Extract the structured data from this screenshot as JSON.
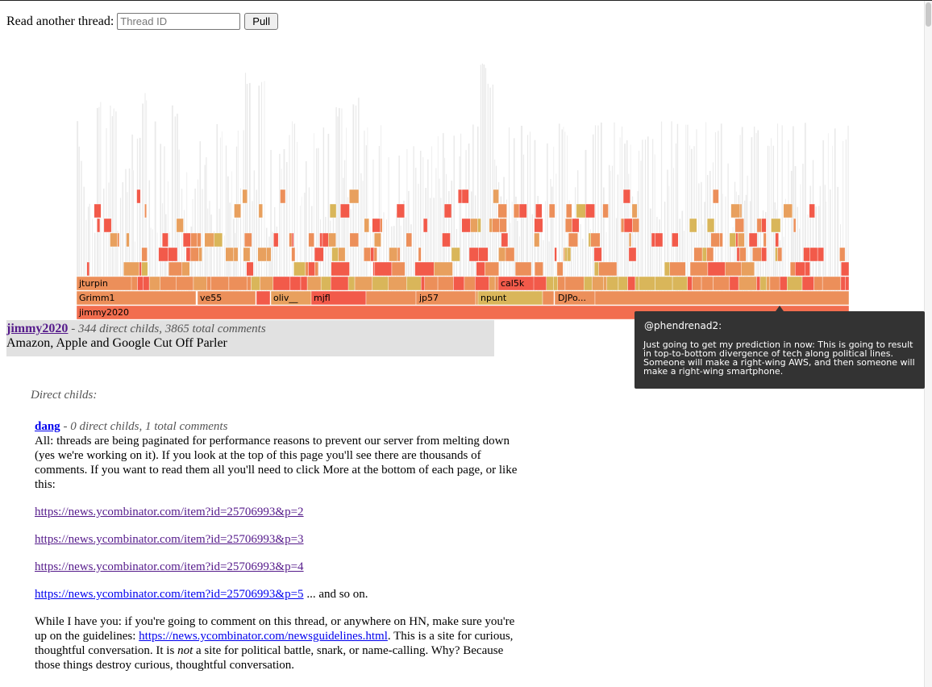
{
  "form": {
    "label": "Read another thread:",
    "placeholder": "Thread ID",
    "pull_label": "Pull"
  },
  "flamegraph": {
    "root_label": "jimmy2020",
    "level1_labels": [
      "Grimm1",
      "ve55",
      "oliv__",
      "mjfl",
      "jp57",
      "npunt",
      "DJPo..."
    ],
    "level2_labels": [
      "jturpin",
      "cal5k"
    ],
    "colors": {
      "root": "#f26d4f",
      "orange": "#ec8f5a",
      "red": "#f25a4a",
      "tan": "#e8a05e",
      "yellow": "#d9b65a",
      "light": "#e9e9e9"
    }
  },
  "tooltip": {
    "user": "@phendrenad2:",
    "text": "Just going to get my prediction in now: This is going to result in top-to-bottom divergence of tech along political lines. Someone will make a right-wing AWS, and then someone will make a right-wing smartphone."
  },
  "thread": {
    "author": "jimmy2020",
    "stats": "344 direct childs, 3865 total comments",
    "title": "Amazon, Apple and Google Cut Off Parler"
  },
  "direct_label": "Direct childs:",
  "comment": {
    "author": "dang",
    "stats": "0 direct childs, 1 total comments",
    "p1": "All: threads are being paginated for performance reasons to prevent our server from melting down (yes we're working on it). If you look at the top of this page you'll see there are thousands of comments. If you want to read them all you'll need to click More at the bottom of each page, or like this:",
    "links": [
      "https://news.ycombinator.com/item?id=25706993&p=2",
      "https://news.ycombinator.com/item?id=25706993&p=3",
      "https://news.ycombinator.com/item?id=25706993&p=4",
      "https://news.ycombinator.com/item?id=25706993&p=5"
    ],
    "and_so_on": " ... and so on.",
    "p2_a": "While I have you: if you're going to comment on this thread, or anywhere on HN, make sure you're up on the guidelines: ",
    "guidelines_link": "https://news.ycombinator.com/newsguidelines.html",
    "p2_b": ". This is a site for curious, thoughtful conversation. It is ",
    "p2_not": "not",
    "p2_c": " a site for political battle, snark, or name-calling. Why? Because those things destroy curious, thoughtful conversation."
  }
}
